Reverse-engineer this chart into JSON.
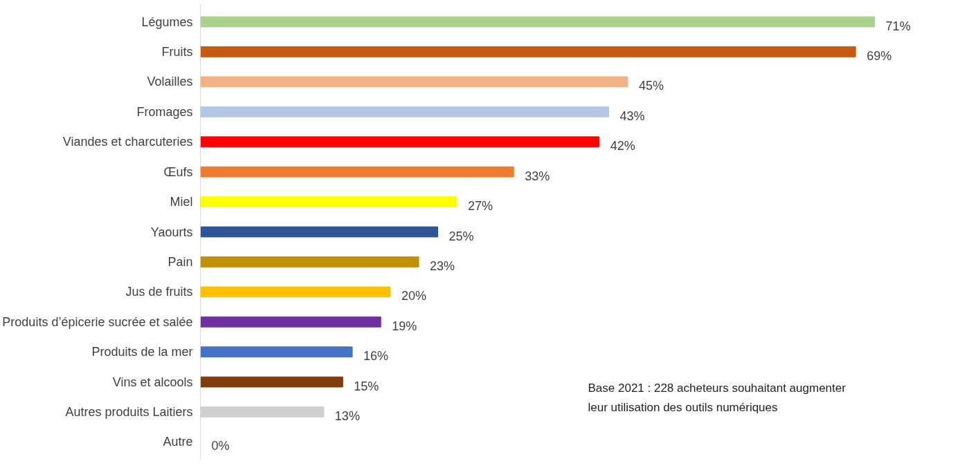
{
  "chart_data": {
    "type": "bar",
    "orientation": "horizontal",
    "categories": [
      "Légumes",
      "Fruits",
      "Volailles",
      "Fromages",
      "Viandes et charcuteries",
      "Œufs",
      "Miel",
      "Yaourts",
      "Pain",
      "Jus de fruits",
      "Produits d’épicerie sucrée et salée",
      "Produits de la mer",
      "Vins et alcools",
      "Autres produits Laitiers",
      "Autre"
    ],
    "values": [
      71,
      69,
      45,
      43,
      42,
      33,
      27,
      25,
      23,
      20,
      19,
      16,
      15,
      13,
      0
    ],
    "colors": [
      "#a9d18e",
      "#c55a11",
      "#f4b183",
      "#b4c7e7",
      "#ff0000",
      "#ed7d31",
      "#ffff00",
      "#2f5597",
      "#bf9000",
      "#ffc000",
      "#7030a0",
      "#4472c4",
      "#843c0c",
      "#d0cece",
      "#a5a5a5"
    ],
    "value_labels": [
      "71%",
      "69%",
      "45%",
      "43%",
      "42%",
      "33%",
      "27%",
      "25%",
      "23%",
      "20%",
      "19%",
      "16%",
      "15%",
      "13%",
      "0%"
    ],
    "annotations": [
      "Base 2021 : 228 acheteurs souhaitant augmenter leur utilisation des outils numériques"
    ],
    "grid": false
  }
}
